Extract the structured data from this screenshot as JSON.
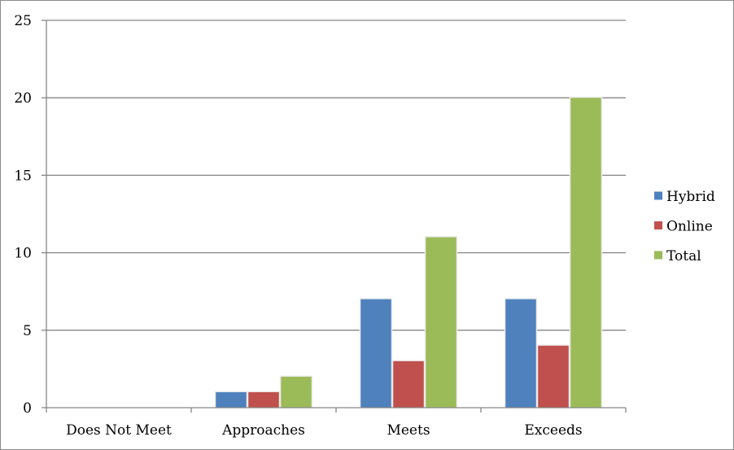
{
  "chart_data": {
    "type": "bar",
    "title": "",
    "xlabel": "",
    "ylabel": "",
    "categories": [
      "Does Not Meet",
      "Approaches",
      "Meets",
      "Exceeds"
    ],
    "series": [
      {
        "name": "Hybrid",
        "values": [
          0,
          1,
          7,
          7
        ],
        "color": "#4f81bd"
      },
      {
        "name": "Online",
        "values": [
          0,
          1,
          3,
          4
        ],
        "color": "#c0504d"
      },
      {
        "name": "Total",
        "values": [
          0,
          2,
          11,
          20
        ],
        "color": "#9bbb59"
      }
    ],
    "ylim": [
      0,
      25
    ],
    "yticks": [
      "0",
      "5",
      "10",
      "15",
      "20",
      "25"
    ],
    "grid": true,
    "legend_position": "right"
  }
}
